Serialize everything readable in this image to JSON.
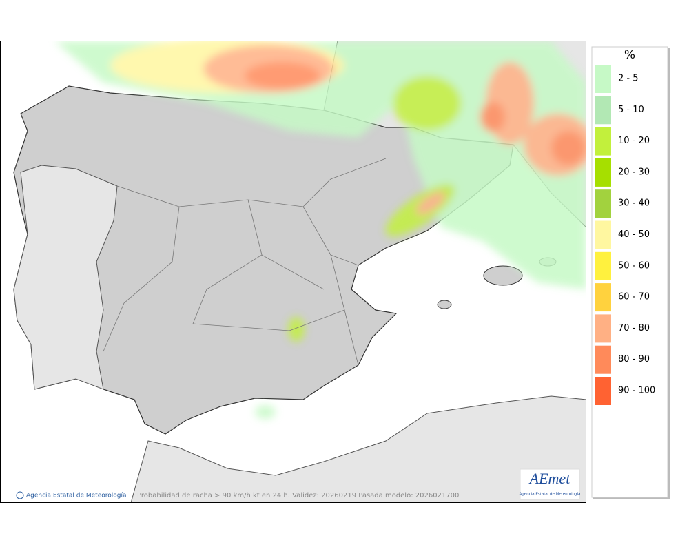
{
  "legend": {
    "title": "%",
    "items": [
      {
        "label": "2 - 5",
        "color": "#c6f9c6"
      },
      {
        "label": "5 - 10",
        "color": "#b2e8b4"
      },
      {
        "label": "10 - 20",
        "color": "#c2f03c"
      },
      {
        "label": "20 - 30",
        "color": "#a6df00"
      },
      {
        "label": "30 - 40",
        "color": "#a2d23e"
      },
      {
        "label": "40 - 50",
        "color": "#fff7a0"
      },
      {
        "label": "50 - 60",
        "color": "#fff13e"
      },
      {
        "label": "60 - 70",
        "color": "#ffd23e"
      },
      {
        "label": "70 - 80",
        "color": "#ffb084"
      },
      {
        "label": "80 - 90",
        "color": "#ff8a5a"
      },
      {
        "label": "90 - 100",
        "color": "#ff6232"
      }
    ]
  },
  "footer": {
    "credit": "Agencia Estatal de Meteorología",
    "caption": "Probabilidad de racha > 90 km/h kt en 24 h. Validez: 20260219 Pasada modelo: 2026021700"
  },
  "logo": {
    "name": "AEmet",
    "subtitle": "Agencia Estatal de Meteorología"
  }
}
